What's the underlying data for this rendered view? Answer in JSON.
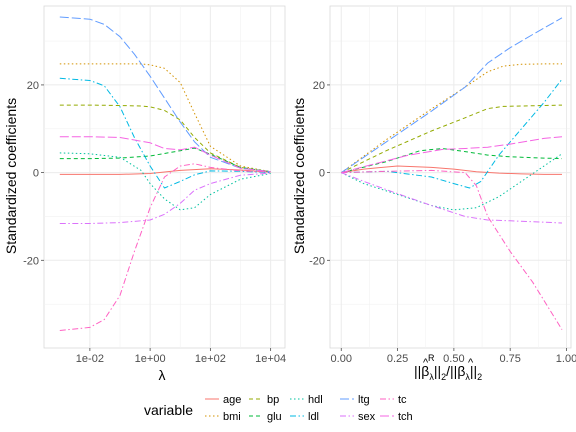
{
  "chart_data": [
    {
      "type": "line",
      "xlabel": "λ",
      "ylabel": "Standardized coefficients",
      "x_scale": "log10",
      "xlim": [
        0.0003,
        30000
      ],
      "ylim": [
        -40,
        38
      ],
      "x_ticks": [
        0.01,
        1,
        100,
        10000
      ],
      "x_tick_labels": [
        "1e-02",
        "1e+00",
        "1e+02",
        "1e+04"
      ],
      "y_ticks": [
        -20,
        0,
        20
      ],
      "y_tick_labels": [
        "-20",
        "0",
        "20"
      ],
      "grid": true,
      "series": [
        {
          "name": "age",
          "color": "#F8766D",
          "dash": "solid",
          "x": [
            0.001,
            0.01,
            0.1,
            1,
            10,
            100,
            1000,
            10000
          ],
          "y": [
            -0.4,
            -0.4,
            -0.4,
            -0.2,
            0.5,
            0.9,
            0.6,
            0.1
          ]
        },
        {
          "name": "bmi",
          "color": "#D39200",
          "dash": "dotted",
          "x": [
            0.001,
            0.01,
            0.1,
            0.5,
            1,
            3,
            10,
            30,
            100,
            1000,
            10000
          ],
          "y": [
            24.8,
            24.8,
            24.8,
            24.8,
            24.6,
            23.8,
            20.5,
            13.5,
            6.0,
            1.5,
            0.2
          ]
        },
        {
          "name": "bp",
          "color": "#93AA00",
          "dash": "dashed",
          "x": [
            0.001,
            0.01,
            0.1,
            0.5,
            1,
            3,
            10,
            30,
            100,
            1000,
            10000
          ],
          "y": [
            15.4,
            15.4,
            15.3,
            15.2,
            15.0,
            14.2,
            12.0,
            8.0,
            4.5,
            1.2,
            0.2
          ]
        },
        {
          "name": "glu",
          "color": "#00BA38",
          "dash": "dashed",
          "x": [
            0.001,
            0.01,
            0.1,
            1,
            10,
            30,
            100,
            1000,
            10000
          ],
          "y": [
            3.2,
            3.2,
            3.3,
            3.8,
            5.0,
            5.6,
            4.2,
            1.2,
            0.2
          ]
        },
        {
          "name": "hdl",
          "color": "#00C19F",
          "dash": "dotted",
          "x": [
            0.001,
            0.01,
            0.1,
            0.5,
            1,
            3,
            10,
            30,
            100,
            1000,
            10000
          ],
          "y": [
            4.5,
            4.3,
            3.5,
            0.5,
            -2.5,
            -6.0,
            -8.5,
            -8.0,
            -5.0,
            -1.5,
            -0.2
          ]
        },
        {
          "name": "ldl",
          "color": "#00B9E3",
          "dash": "dashdot",
          "x": [
            0.001,
            0.01,
            0.03,
            0.1,
            0.3,
            1,
            3,
            10,
            30,
            100,
            1000,
            10000
          ],
          "y": [
            21.5,
            21.0,
            19.8,
            15.0,
            8.0,
            1.5,
            -3.5,
            -2.0,
            -0.5,
            0.4,
            0.3,
            0.0
          ]
        },
        {
          "name": "ltg",
          "color": "#619CFF",
          "dash": "longdash",
          "x": [
            0.001,
            0.01,
            0.03,
            0.1,
            0.3,
            1,
            3,
            10,
            30,
            100,
            1000,
            10000
          ],
          "y": [
            35.5,
            35.0,
            33.8,
            31.0,
            27.0,
            22.0,
            17.0,
            11.5,
            7.0,
            3.5,
            1.0,
            0.2
          ]
        },
        {
          "name": "sex",
          "color": "#DB72FB",
          "dash": "dashdot",
          "x": [
            0.001,
            0.01,
            0.1,
            1,
            3,
            10,
            30,
            100,
            1000,
            10000
          ],
          "y": [
            -11.6,
            -11.6,
            -11.4,
            -10.8,
            -9.5,
            -7.0,
            -4.0,
            -2.5,
            -0.6,
            -0.1
          ]
        },
        {
          "name": "tc",
          "color": "#FF61C3",
          "dash": "dashdot",
          "x": [
            0.001,
            0.01,
            0.03,
            0.1,
            0.3,
            1,
            3,
            10,
            30,
            100,
            1000,
            10000
          ],
          "y": [
            -36.0,
            -35.3,
            -33.5,
            -28.0,
            -18.0,
            -8.0,
            -1.0,
            1.5,
            2.0,
            1.2,
            0.4,
            0.1
          ]
        },
        {
          "name": "tch",
          "color": "#F564E3",
          "dash": "longdash",
          "x": [
            0.001,
            0.01,
            0.1,
            1,
            3,
            10,
            30,
            100,
            1000,
            10000
          ],
          "y": [
            8.2,
            8.2,
            8.0,
            6.8,
            5.5,
            5.2,
            5.8,
            4.0,
            1.0,
            0.2
          ]
        }
      ]
    },
    {
      "type": "line",
      "xlabel_parts": {
        "open": "||",
        "beta": "β",
        "hat": "^",
        "sub_lambda": "λ",
        "sup_r": "R",
        "mid": "||",
        "sub_2": "2",
        "slash": "/",
        "close": "||"
      },
      "ylabel": "Standardized coefficients",
      "xlim": [
        -0.05,
        1.02
      ],
      "ylim": [
        -40,
        38
      ],
      "x_ticks": [
        0,
        0.25,
        0.5,
        0.75,
        1
      ],
      "x_tick_labels": [
        "0.00",
        "0.25",
        "0.50",
        "0.75",
        "1.00"
      ],
      "y_ticks": [
        -20,
        0,
        20
      ],
      "y_tick_labels": [
        "-20",
        "0",
        "20"
      ],
      "grid": true,
      "series": [
        {
          "name": "age",
          "color": "#F8766D",
          "dash": "solid",
          "x": [
            0,
            0.1,
            0.25,
            0.4,
            0.5,
            0.6,
            0.7,
            0.8,
            0.9,
            0.98
          ],
          "y": [
            0,
            0.8,
            1.5,
            1.2,
            0.8,
            0.2,
            -0.1,
            -0.3,
            -0.4,
            -0.4
          ]
        },
        {
          "name": "bmi",
          "color": "#D39200",
          "dash": "dotted",
          "x": [
            0,
            0.2,
            0.4,
            0.55,
            0.65,
            0.72,
            0.8,
            0.9,
            0.98
          ],
          "y": [
            0,
            7.5,
            14.5,
            19.5,
            23.0,
            24.3,
            24.7,
            24.8,
            24.8
          ]
        },
        {
          "name": "bp",
          "color": "#93AA00",
          "dash": "dashed",
          "x": [
            0,
            0.2,
            0.4,
            0.55,
            0.65,
            0.72,
            0.8,
            0.9,
            0.98
          ],
          "y": [
            0,
            5.0,
            9.5,
            12.5,
            14.6,
            15.1,
            15.2,
            15.3,
            15.4
          ]
        },
        {
          "name": "glu",
          "color": "#00BA38",
          "dash": "dashed",
          "x": [
            0,
            0.2,
            0.35,
            0.45,
            0.55,
            0.65,
            0.75,
            0.9,
            0.98
          ],
          "y": [
            0,
            2.5,
            5.0,
            5.5,
            4.8,
            4.0,
            3.6,
            3.3,
            3.2
          ]
        },
        {
          "name": "hdl",
          "color": "#00C19F",
          "dash": "dotted",
          "x": [
            0,
            0.1,
            0.25,
            0.4,
            0.5,
            0.6,
            0.7,
            0.8,
            0.9,
            0.98
          ],
          "y": [
            0,
            -2.5,
            -5.0,
            -7.5,
            -8.5,
            -8.0,
            -5.5,
            -2.0,
            1.5,
            4.3
          ]
        },
        {
          "name": "ldl",
          "color": "#00B9E3",
          "dash": "dashdot",
          "x": [
            0,
            0.2,
            0.4,
            0.5,
            0.57,
            0.62,
            0.7,
            0.8,
            0.9,
            0.98
          ],
          "y": [
            0,
            0.3,
            -1.0,
            -2.5,
            -3.5,
            -2.0,
            4.0,
            10.0,
            16.0,
            21.3
          ]
        },
        {
          "name": "ltg",
          "color": "#619CFF",
          "dash": "longdash",
          "x": [
            0,
            0.2,
            0.4,
            0.55,
            0.65,
            0.75,
            0.85,
            0.98
          ],
          "y": [
            0,
            7.0,
            14.0,
            19.5,
            25.0,
            28.5,
            31.5,
            35.3
          ]
        },
        {
          "name": "sex",
          "color": "#DB72FB",
          "dash": "dashdot",
          "x": [
            0,
            0.1,
            0.25,
            0.4,
            0.55,
            0.65,
            0.75,
            0.9,
            0.98
          ],
          "y": [
            0,
            -2.0,
            -4.8,
            -7.5,
            -10.0,
            -10.8,
            -11.0,
            -11.3,
            -11.5
          ]
        },
        {
          "name": "tc",
          "color": "#FF61C3",
          "dash": "dashdot",
          "x": [
            0,
            0.2,
            0.4,
            0.55,
            0.6,
            0.65,
            0.75,
            0.85,
            0.98
          ],
          "y": [
            0,
            0.3,
            0.5,
            0.0,
            -3.0,
            -10.0,
            -18.0,
            -25.0,
            -35.8
          ]
        },
        {
          "name": "tch",
          "color": "#F564E3",
          "dash": "longdash",
          "x": [
            0,
            0.15,
            0.3,
            0.45,
            0.55,
            0.65,
            0.75,
            0.9,
            0.98
          ],
          "y": [
            0,
            2.0,
            4.0,
            5.3,
            5.5,
            5.8,
            6.5,
            7.8,
            8.2
          ]
        }
      ]
    }
  ],
  "legend": {
    "title": "variable",
    "position": "bottom",
    "items": [
      {
        "label": "age",
        "color": "#F8766D",
        "dash": "solid"
      },
      {
        "label": "bmi",
        "color": "#D39200",
        "dash": "dotted"
      },
      {
        "label": "bp",
        "color": "#93AA00",
        "dash": "dashed"
      },
      {
        "label": "glu",
        "color": "#00BA38",
        "dash": "dashed"
      },
      {
        "label": "hdl",
        "color": "#00C19F",
        "dash": "dotted"
      },
      {
        "label": "ldl",
        "color": "#00B9E3",
        "dash": "dashdot"
      },
      {
        "label": "ltg",
        "color": "#619CFF",
        "dash": "longdash"
      },
      {
        "label": "sex",
        "color": "#DB72FB",
        "dash": "dashdot"
      },
      {
        "label": "tc",
        "color": "#FF61C3",
        "dash": "dashdot"
      },
      {
        "label": "tch",
        "color": "#F564E3",
        "dash": "longdash"
      }
    ]
  }
}
